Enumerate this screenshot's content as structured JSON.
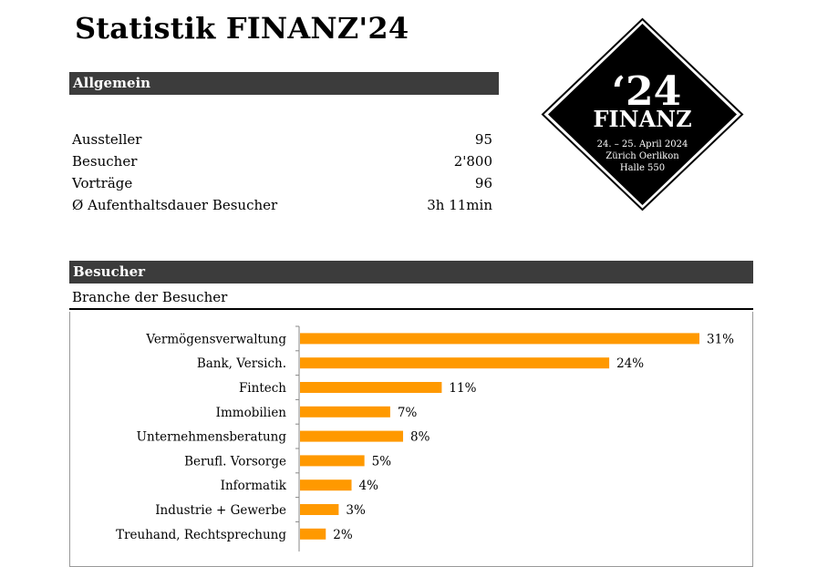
{
  "title": "Statistik FINANZ'24",
  "sections": {
    "allgemein": "Allgemein",
    "besucher": "Besucher"
  },
  "stats": [
    {
      "label": "Aussteller",
      "value": "95"
    },
    {
      "label": "Besucher",
      "value": "2'800"
    },
    {
      "label": "Vorträge",
      "value": "96"
    },
    {
      "label": "Ø Aufenthaltsdauer Besucher",
      "value": "3h 11min"
    }
  ],
  "logo": {
    "year": "‘24",
    "name": "FINANZ",
    "date": "24. – 25. April 2024",
    "place": "Zürich Oerlikon",
    "hall": "Halle 550"
  },
  "branche_title": "Branche der Besucher",
  "chart_data": {
    "type": "bar",
    "orientation": "horizontal",
    "categories": [
      "Vermögensverwaltung",
      "Bank, Versich.",
      "Fintech",
      "Immobilien",
      "Unternehmensberatung",
      "Berufl. Vorsorge",
      "Informatik",
      "Industrie + Gewerbe",
      "Treuhand, Rechtsprechung"
    ],
    "values": [
      31,
      24,
      11,
      7,
      8,
      5,
      4,
      3,
      2
    ],
    "value_suffix": "%",
    "bar_color": "#ff9900",
    "xlim": [
      0,
      31
    ]
  }
}
